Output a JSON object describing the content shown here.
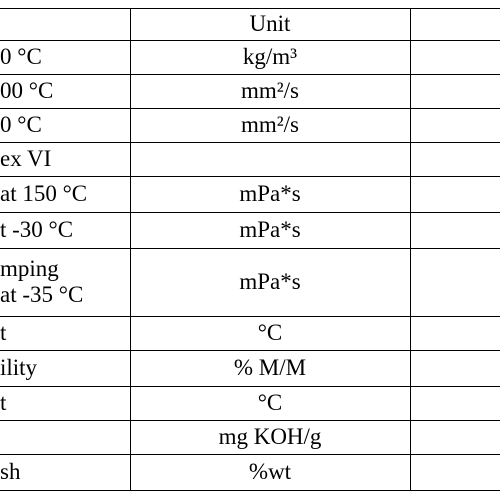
{
  "table": {
    "header": {
      "unit": "Unit"
    },
    "rows": [
      {
        "label": [
          "0 °C"
        ],
        "unit": "kg/m³"
      },
      {
        "label": [
          "00 °C"
        ],
        "unit": "mm²/s"
      },
      {
        "label": [
          "0 °C"
        ],
        "unit": "mm²/s"
      },
      {
        "label": [
          "ex VI"
        ]
      },
      {
        "label": [
          "at 150 °C"
        ],
        "unit": "mPa*s"
      },
      {
        "label": [
          "t -30 °C"
        ],
        "unit": "mPa*s"
      },
      {
        "label": [
          "mping",
          "at -35 °C"
        ],
        "unit": "mPa*s"
      },
      {
        "label": [
          "t"
        ],
        "unit": "°C"
      },
      {
        "label": [
          "ility"
        ],
        "unit": "% M/M"
      },
      {
        "label": [
          "t"
        ],
        "unit": "°C"
      },
      {
        "unit": "mg KOH/g"
      },
      {
        "label": [
          "sh"
        ],
        "unit": "%wt"
      }
    ]
  }
}
